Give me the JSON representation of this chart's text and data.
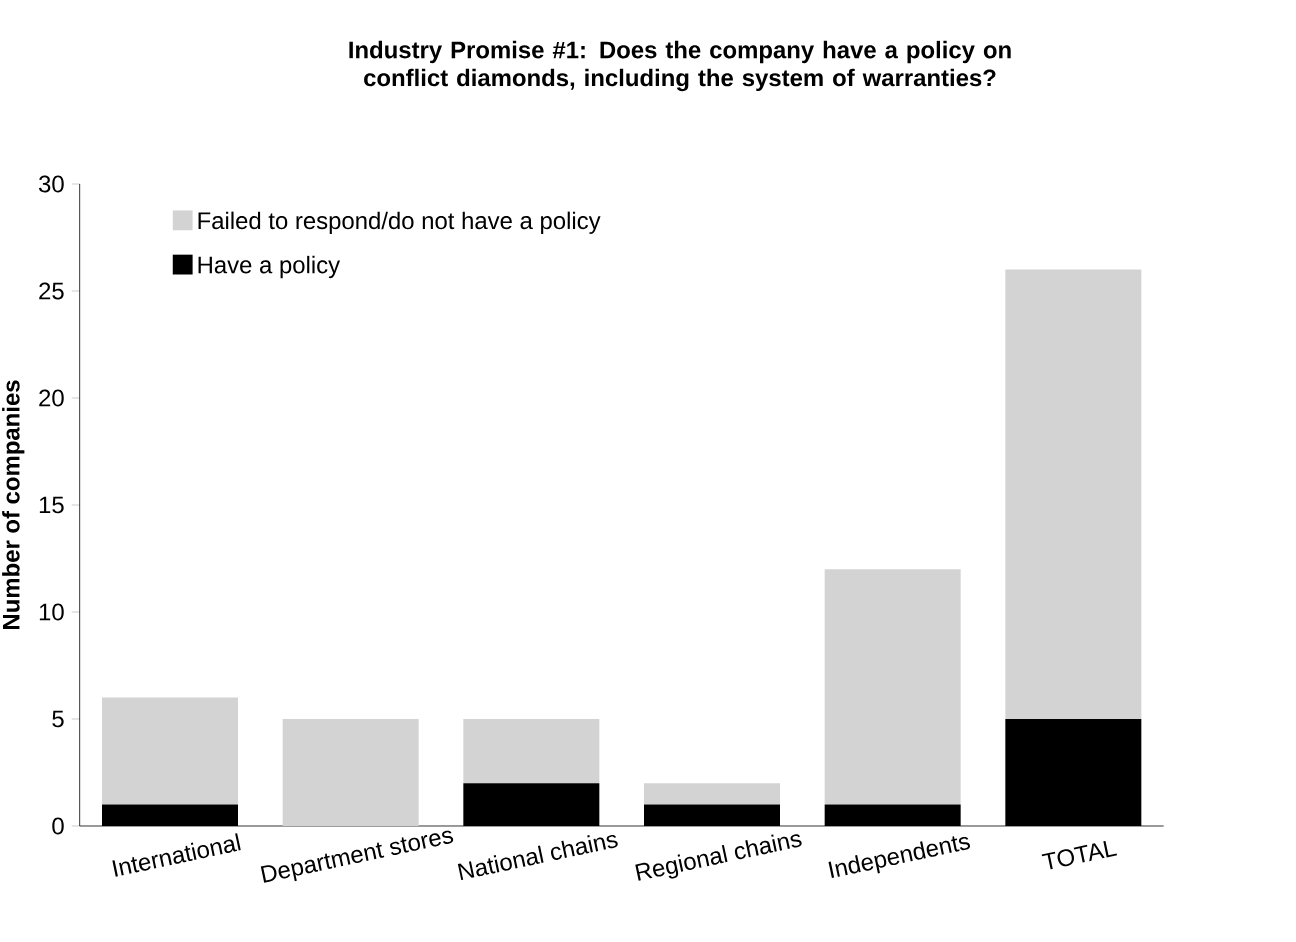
{
  "chart_data": {
    "type": "bar",
    "stacked": true,
    "title": "Industry Promise #1: Does the company have a policy on conflict diamonds, including the system of warranties?",
    "ylabel": "Number of companies",
    "categories": [
      "International",
      "Department stores",
      "National chains",
      "Regional chains",
      "Independents",
      "TOTAL"
    ],
    "series": [
      {
        "name": "Have a policy",
        "color": "#000000",
        "values": [
          1,
          0,
          2,
          1,
          1,
          5
        ]
      },
      {
        "name": "Failed to respond/do not have a policy",
        "color": "#d3d3d3",
        "values": [
          5,
          5,
          3,
          1,
          11,
          21
        ]
      }
    ],
    "ylim": [
      0,
      30
    ],
    "yticks": [
      0,
      5,
      10,
      15,
      20,
      25,
      30
    ],
    "legend": "top left",
    "grid": false
  }
}
